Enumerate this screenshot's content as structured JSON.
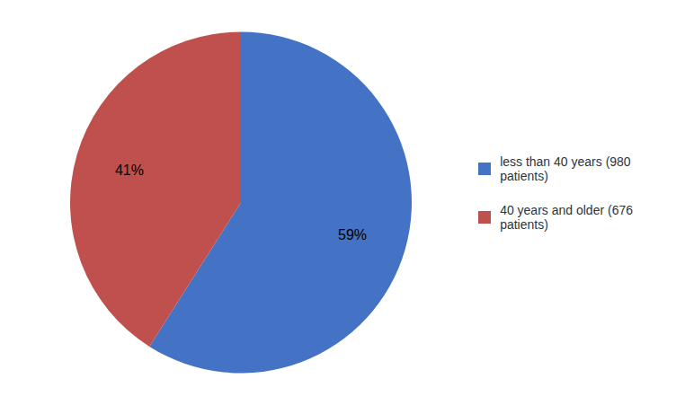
{
  "chart_data": {
    "type": "pie",
    "categories": [
      "less than 40 years (980\npatients)",
      "40 years and older (676\npatients)"
    ],
    "values": [
      59,
      41
    ],
    "value_labels": [
      "59%",
      "41%"
    ],
    "colors": [
      "#4472C4",
      "#C0504D"
    ],
    "data_labels": true,
    "legend": "right"
  }
}
